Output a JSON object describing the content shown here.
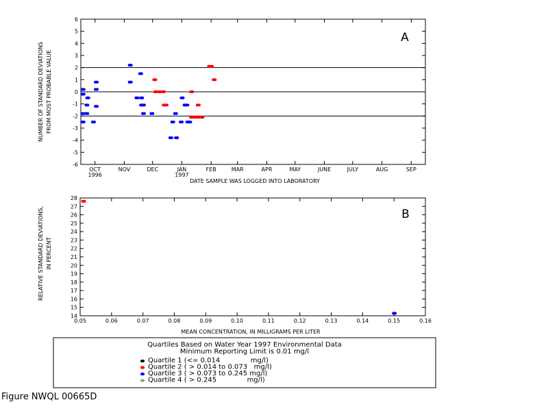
{
  "chart_data": [
    {
      "type": "scatter",
      "panel_label": "A",
      "xlabel": "DATE SAMPLE WAS LOGGED INTO LABORATORY",
      "ylabel_line1": "NUMBER OF STANDARD DEVIATIONS",
      "ylabel_line2": "FROM MOST PROBABLE VALUE",
      "ylim": [
        -6,
        6
      ],
      "yticks": [
        -6,
        -5,
        -4,
        -3,
        -2,
        -1,
        0,
        1,
        2,
        3,
        4,
        5,
        6
      ],
      "x_ticks": [
        {
          "label": "OCT",
          "sub": "1996",
          "day": 15
        },
        {
          "label": "NOV",
          "sub": "",
          "day": 46
        },
        {
          "label": "DEC",
          "sub": "",
          "day": 76
        },
        {
          "label": "JAN",
          "sub": "1997",
          "day": 107
        },
        {
          "label": "FEB",
          "sub": "",
          "day": 138
        },
        {
          "label": "MAR",
          "sub": "",
          "day": 166
        },
        {
          "label": "APR",
          "sub": "",
          "day": 197
        },
        {
          "label": "MAY",
          "sub": "",
          "day": 227
        },
        {
          "label": "JUNE",
          "sub": "",
          "day": 258
        },
        {
          "label": "JULY",
          "sub": "",
          "day": 288
        },
        {
          "label": "AUG",
          "sub": "",
          "day": 319
        },
        {
          "label": "SEP",
          "sub": "",
          "day": 350
        }
      ],
      "xlim_days": [
        0,
        365
      ],
      "reference_lines": [
        2,
        0,
        -2
      ],
      "series": [
        {
          "quartile": 3,
          "color": "#0000ff",
          "points": [
            [
              2,
              0.2
            ],
            [
              2,
              -0.2
            ],
            [
              2,
              -1.8
            ],
            [
              2,
              -2.5
            ],
            [
              6,
              -1.8
            ],
            [
              6,
              -1.1
            ],
            [
              7,
              -0.5
            ],
            [
              13,
              -2.5
            ],
            [
              16,
              0.8
            ],
            [
              16,
              0.2
            ],
            [
              16,
              -1.2
            ],
            [
              52,
              2.2
            ],
            [
              52,
              0.8
            ],
            [
              59,
              -0.5
            ],
            [
              63,
              1.5
            ],
            [
              64,
              -1.1
            ],
            [
              64,
              -0.5
            ],
            [
              66,
              -1.1
            ],
            [
              66,
              -1.8
            ],
            [
              75,
              -1.8
            ],
            [
              95,
              -3.8
            ],
            [
              97,
              -2.5
            ],
            [
              100,
              -1.8
            ],
            [
              101,
              -3.8
            ],
            [
              106,
              -2.5
            ],
            [
              107,
              -0.5
            ],
            [
              110,
              -1.1
            ],
            [
              112,
              -1.1
            ],
            [
              113,
              -2.5
            ],
            [
              115,
              -2.5
            ]
          ]
        },
        {
          "quartile": 2,
          "color": "#ff0000",
          "points": [
            [
              78,
              1.0
            ],
            [
              79,
              0.0
            ],
            [
              83,
              0.0
            ],
            [
              87,
              0.0
            ],
            [
              88,
              -1.1
            ],
            [
              90,
              -1.1
            ],
            [
              117,
              0.0
            ],
            [
              117,
              -2.1
            ],
            [
              121,
              -2.1
            ],
            [
              124,
              -1.1
            ],
            [
              125,
              -2.1
            ],
            [
              128,
              -2.1
            ],
            [
              136,
              2.1
            ],
            [
              138,
              2.1
            ],
            [
              141,
              1.0
            ]
          ]
        }
      ]
    },
    {
      "type": "scatter",
      "panel_label": "B",
      "xlabel": "MEAN CONCENTRATION, IN MILLIGRAMS PER LITER",
      "ylabel_line1": "RELATIVE STANDARD DEVIATIONS,",
      "ylabel_line2": "IN PERCENT",
      "xlim": [
        0.05,
        0.16
      ],
      "ylim": [
        14,
        28
      ],
      "xticks": [
        "0.05",
        "0.06",
        "0.07",
        "0.08",
        "0.09",
        "0.10",
        "0.11",
        "0.12",
        "0.13",
        "0.14",
        "0.15",
        "0.16"
      ],
      "yticks": [
        14,
        15,
        16,
        17,
        18,
        19,
        20,
        21,
        22,
        23,
        24,
        25,
        26,
        27,
        28
      ],
      "series": [
        {
          "quartile": 2,
          "color": "#ff0000",
          "points": [
            [
              0.051,
              27.6
            ]
          ]
        },
        {
          "quartile": 3,
          "color": "#0000ff",
          "points": [
            [
              0.15,
              14.3
            ]
          ]
        }
      ]
    }
  ],
  "legend": {
    "title_line1": "Quartiles Based on Water Year 1997 Environmental Data",
    "title_line2": "Minimum Reporting Limit is 0.01 mg/l",
    "items": [
      {
        "label": "Quartile 1 (<= 0.014              mg/l)",
        "color": "#000000"
      },
      {
        "label": "Quartile 2 ( > 0.014 to 0.073   mg/l)",
        "color": "#ff0000"
      },
      {
        "label": "Quartile 3 ( > 0.073 to 0.245 mg/l)",
        "color": "#0000ff"
      },
      {
        "label": "Quartile 4 ( > 0.245              mg/l)",
        "color": "#999999"
      }
    ]
  },
  "figure_label": "Figure NWQL 00665D"
}
